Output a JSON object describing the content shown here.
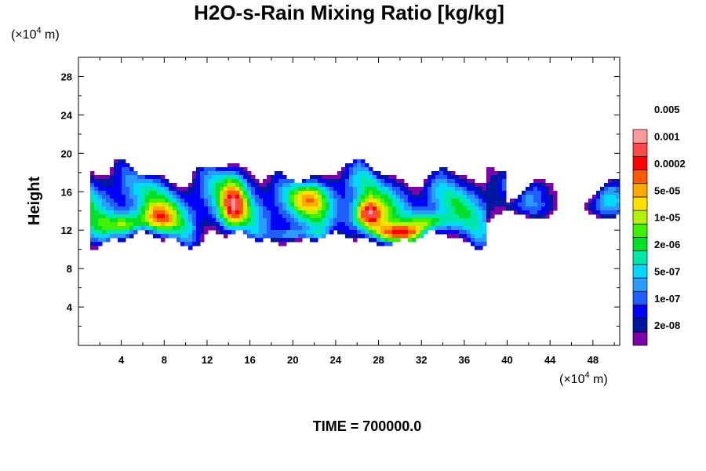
{
  "chart_data": {
    "type": "heatmap",
    "title": "H2O-s-Rain Mixing Ratio [kg/kg]",
    "ylabel": "Height",
    "x_unit": {
      "prefix": "(×10",
      "exp": "4",
      "suffix": " m)"
    },
    "y_unit": {
      "prefix": "(×10",
      "exp": "4",
      "suffix": " m)"
    },
    "xlim": [
      0,
      50.5
    ],
    "ylim": [
      0,
      30
    ],
    "x_ticks": [
      4,
      8,
      12,
      16,
      20,
      24,
      28,
      32,
      36,
      40,
      44,
      48
    ],
    "x_tick_labels": [
      "4",
      "8",
      "12",
      "16",
      "20",
      "24",
      "28",
      "32",
      "36",
      "40",
      "44",
      "48"
    ],
    "y_ticks": [
      4,
      8,
      12,
      16,
      20,
      24,
      28
    ],
    "y_tick_labels": [
      "4",
      "8",
      "12",
      "16",
      "20",
      "24",
      "28"
    ],
    "colorbar": {
      "colors": [
        "#7a00a8",
        "#0018a0",
        "#0000ff",
        "#1f5fff",
        "#2a9cff",
        "#00d8ff",
        "#00e8a8",
        "#00e028",
        "#40f000",
        "#b4f000",
        "#ffe000",
        "#ffaa00",
        "#ff5a00",
        "#ff0000",
        "#ff4848",
        "#ff9a9a"
      ],
      "labels": [
        "2e-08",
        "1e-07",
        "5e-07",
        "2e-06",
        "1e-05",
        "5e-05",
        "0.0002",
        "0.001",
        "0.005"
      ]
    },
    "field": {
      "description_levels": [
        {
          "level": 0,
          "x_range": [
            1.5,
            50.5
          ],
          "y_range": [
            10.5,
            19.5
          ]
        },
        {
          "level": 13,
          "x_range": [
            25.5,
            34.5
          ],
          "y_range": [
            10.2,
            14.8
          ]
        }
      ]
    },
    "time_label": "TIME = 700000.0"
  }
}
